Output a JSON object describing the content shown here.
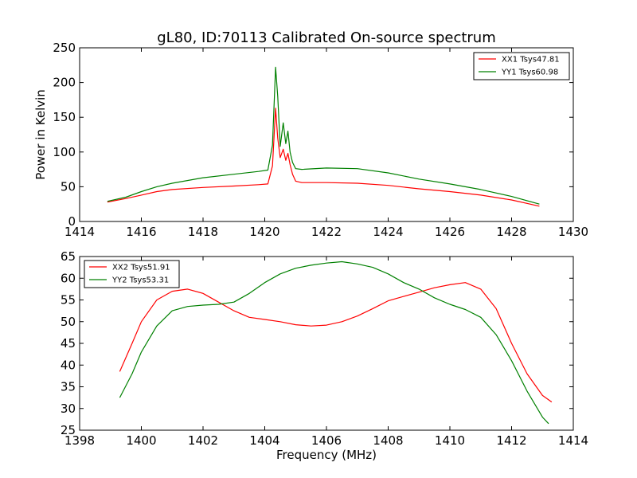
{
  "chart_data": [
    {
      "type": "line",
      "title": "gL80, ID:70113 Calibrated On-source spectrum",
      "xlabel": "",
      "ylabel": "Power in Kelvin",
      "xlim": [
        1414,
        1430
      ],
      "ylim": [
        0,
        250
      ],
      "xticks": [
        "1414",
        "1416",
        "1418",
        "1420",
        "1422",
        "1424",
        "1426",
        "1428",
        "1430"
      ],
      "yticks": [
        "0",
        "50",
        "100",
        "150",
        "200",
        "250"
      ],
      "legend_position": "top-right",
      "grid": false,
      "series": [
        {
          "name": "XX1 Tsys47.81",
          "color": "#ff0000",
          "x": [
            1414.9,
            1415.5,
            1416.0,
            1416.5,
            1417.0,
            1418.0,
            1419.0,
            1419.8,
            1420.1,
            1420.25,
            1420.35,
            1420.42,
            1420.5,
            1420.6,
            1420.68,
            1420.75,
            1420.82,
            1420.9,
            1421.0,
            1421.2,
            1422.0,
            1423.0,
            1424.0,
            1425.0,
            1426.0,
            1427.0,
            1428.0,
            1428.9
          ],
          "y": [
            28,
            33,
            38,
            43,
            46,
            49,
            51,
            53,
            54,
            80,
            163,
            120,
            92,
            104,
            88,
            98,
            82,
            68,
            58,
            56,
            56,
            55,
            52,
            47,
            43,
            38,
            31,
            22
          ]
        },
        {
          "name": "YY1 Tsys60.98",
          "color": "#008000",
          "x": [
            1414.9,
            1415.5,
            1416.0,
            1416.5,
            1417.0,
            1418.0,
            1419.0,
            1419.8,
            1420.1,
            1420.25,
            1420.35,
            1420.42,
            1420.5,
            1420.6,
            1420.68,
            1420.75,
            1420.82,
            1420.9,
            1421.0,
            1421.2,
            1422.0,
            1423.0,
            1424.0,
            1425.0,
            1426.0,
            1427.0,
            1428.0,
            1428.9
          ],
          "y": [
            29,
            35,
            43,
            50,
            55,
            63,
            68,
            72,
            74,
            110,
            222,
            180,
            108,
            142,
            112,
            130,
            100,
            85,
            76,
            75,
            77,
            76,
            70,
            61,
            54,
            46,
            36,
            25
          ]
        }
      ]
    },
    {
      "type": "line",
      "title": "",
      "xlabel": "Frequency (MHz)",
      "ylabel": "",
      "xlim": [
        1398,
        1414
      ],
      "ylim": [
        25,
        65
      ],
      "xticks": [
        "1398",
        "1400",
        "1402",
        "1404",
        "1406",
        "1408",
        "1410",
        "1412",
        "1414"
      ],
      "yticks": [
        "25",
        "30",
        "35",
        "40",
        "45",
        "50",
        "55",
        "60",
        "65"
      ],
      "legend_position": "top-left",
      "grid": false,
      "series": [
        {
          "name": "XX2 Tsys51.91",
          "color": "#ff0000",
          "x": [
            1399.3,
            1399.7,
            1400.0,
            1400.5,
            1401.0,
            1401.5,
            1402.0,
            1402.5,
            1403.0,
            1403.5,
            1404.0,
            1404.5,
            1405.0,
            1405.5,
            1406.0,
            1406.5,
            1407.0,
            1407.5,
            1408.0,
            1408.5,
            1409.0,
            1409.5,
            1410.0,
            1410.5,
            1411.0,
            1411.5,
            1412.0,
            1412.5,
            1413.0,
            1413.3
          ],
          "y": [
            38.5,
            45,
            50,
            55,
            57,
            57.5,
            56.5,
            54.5,
            52.5,
            51,
            50.5,
            50,
            49.3,
            49,
            49.2,
            50,
            51.3,
            53,
            54.8,
            55.8,
            56.8,
            57.8,
            58.5,
            59,
            57.5,
            53,
            45,
            38,
            33,
            31.5
          ]
        },
        {
          "name": "YY2 Tsys53.31",
          "color": "#008000",
          "x": [
            1399.3,
            1399.7,
            1400.0,
            1400.5,
            1401.0,
            1401.5,
            1402.0,
            1402.5,
            1403.0,
            1403.5,
            1404.0,
            1404.5,
            1405.0,
            1405.5,
            1406.0,
            1406.5,
            1407.0,
            1407.5,
            1408.0,
            1408.5,
            1409.0,
            1409.5,
            1410.0,
            1410.5,
            1411.0,
            1411.5,
            1412.0,
            1412.5,
            1413.0,
            1413.2
          ],
          "y": [
            32.5,
            38,
            43,
            49,
            52.5,
            53.5,
            53.8,
            54,
            54.5,
            56.5,
            59,
            61,
            62.3,
            63,
            63.5,
            63.8,
            63.3,
            62.5,
            61,
            59,
            57.5,
            55.5,
            54,
            52.8,
            51,
            47,
            41,
            34,
            28,
            26.5
          ]
        }
      ]
    }
  ]
}
